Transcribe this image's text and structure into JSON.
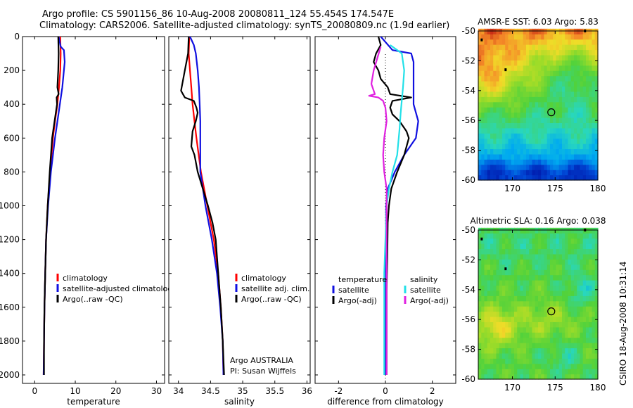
{
  "header": {
    "line1": "Argo profile: CS 5901156_86 10-Aug-2008 20080811_124 55.454S 174.547E",
    "line2": "Climatology: CARS2006. Satellite-adjusted climatology: synTS_20080809.nc (1.9d earlier)"
  },
  "colors": {
    "climatology": "#ff0000",
    "satellite": "#1010e0",
    "argo": "#000000",
    "satellite_salinity": "#22e0e8",
    "argo_salinity": "#e020e0"
  },
  "footer": {
    "credit": "CSIRO 18-Aug-2008 10:31:14"
  },
  "chart_data": [
    {
      "type": "line",
      "name": "temperature",
      "xlabel": "temperature",
      "ylabel": "",
      "xlim": [
        -3,
        32
      ],
      "ylim": [
        2050,
        0
      ],
      "xticks": [
        "0",
        "10",
        "20",
        "30"
      ],
      "xtick_values": [
        0,
        10,
        20,
        30
      ],
      "yticks": [
        "0",
        "200",
        "400",
        "600",
        "800",
        "1000",
        "1200",
        "1400",
        "1600",
        "1800",
        "2000"
      ],
      "ytick_values": [
        0,
        200,
        400,
        600,
        800,
        1000,
        1200,
        1400,
        1600,
        1800,
        2000
      ],
      "legend": [
        "climatology",
        "satellite-adjusted climatology",
        "Argo(..raw -QC)"
      ],
      "series": [
        {
          "name": "climatology",
          "color_key": "climatology",
          "points": [
            [
              6.3,
              0
            ],
            [
              6.4,
              100
            ],
            [
              6.3,
              200
            ],
            [
              6.0,
              300
            ],
            [
              5.6,
              400
            ],
            [
              5.0,
              500
            ],
            [
              4.5,
              600
            ],
            [
              3.8,
              800
            ],
            [
              3.2,
              1000
            ],
            [
              2.8,
              1200
            ],
            [
              2.6,
              1400
            ],
            [
              2.4,
              1600
            ],
            [
              2.3,
              1800
            ],
            [
              2.2,
              2000
            ]
          ]
        },
        {
          "name": "satellite-adjusted climatology",
          "color_key": "satellite",
          "points": [
            [
              5.9,
              0
            ],
            [
              6.4,
              60
            ],
            [
              7.2,
              80
            ],
            [
              7.4,
              150
            ],
            [
              6.8,
              300
            ],
            [
              5.9,
              450
            ],
            [
              5.0,
              600
            ],
            [
              4.0,
              800
            ],
            [
              3.3,
              1000
            ],
            [
              2.8,
              1200
            ],
            [
              2.6,
              1400
            ],
            [
              2.4,
              1600
            ],
            [
              2.3,
              1800
            ],
            [
              2.2,
              2000
            ]
          ]
        },
        {
          "name": "Argo(..raw -QC)",
          "color_key": "argo",
          "points": [
            [
              5.8,
              0
            ],
            [
              5.9,
              100
            ],
            [
              5.8,
              200
            ],
            [
              5.6,
              300
            ],
            [
              5.9,
              340
            ],
            [
              5.4,
              360
            ],
            [
              5.5,
              400
            ],
            [
              4.9,
              500
            ],
            [
              4.3,
              600
            ],
            [
              3.7,
              800
            ],
            [
              3.2,
              1000
            ],
            [
              2.8,
              1200
            ],
            [
              2.6,
              1400
            ],
            [
              2.4,
              1600
            ],
            [
              2.3,
              1800
            ],
            [
              2.3,
              2000
            ]
          ]
        }
      ]
    },
    {
      "type": "line",
      "name": "salinity",
      "xlabel": "salinity",
      "ylabel": "",
      "xlim": [
        33.85,
        36.05
      ],
      "ylim": [
        2050,
        0
      ],
      "xticks": [
        "34",
        "34.5",
        "35",
        "35.5",
        "36"
      ],
      "xtick_values": [
        34,
        34.5,
        35,
        35.5,
        36
      ],
      "legend": [
        "climatology",
        "satellite adj. clim.",
        "Argo(..raw -QC)"
      ],
      "annotations": [
        "Argo AUSTRALIA",
        "PI: Susan Wijffels"
      ],
      "series": [
        {
          "name": "climatology",
          "color_key": "climatology",
          "points": [
            [
              34.17,
              0
            ],
            [
              34.16,
              100
            ],
            [
              34.18,
              200
            ],
            [
              34.2,
              300
            ],
            [
              34.22,
              400
            ],
            [
              34.25,
              500
            ],
            [
              34.28,
              600
            ],
            [
              34.35,
              800
            ],
            [
              34.45,
              1000
            ],
            [
              34.55,
              1200
            ],
            [
              34.62,
              1400
            ],
            [
              34.66,
              1600
            ],
            [
              34.69,
              1800
            ],
            [
              34.7,
              2000
            ]
          ]
        },
        {
          "name": "satellite adj. clim.",
          "color_key": "satellite",
          "points": [
            [
              34.18,
              0
            ],
            [
              34.24,
              50
            ],
            [
              34.27,
              100
            ],
            [
              34.3,
              200
            ],
            [
              34.32,
              300
            ],
            [
              34.33,
              400
            ],
            [
              34.34,
              500
            ],
            [
              34.34,
              600
            ],
            [
              34.34,
              800
            ],
            [
              34.42,
              1000
            ],
            [
              34.52,
              1200
            ],
            [
              34.6,
              1400
            ],
            [
              34.65,
              1600
            ],
            [
              34.69,
              1800
            ],
            [
              34.7,
              2000
            ]
          ]
        },
        {
          "name": "Argo(..raw -QC)",
          "color_key": "argo",
          "points": [
            [
              34.16,
              0
            ],
            [
              34.15,
              100
            ],
            [
              34.1,
              200
            ],
            [
              34.06,
              280
            ],
            [
              34.04,
              320
            ],
            [
              34.1,
              360
            ],
            [
              34.24,
              380
            ],
            [
              34.28,
              420
            ],
            [
              34.3,
              450
            ],
            [
              34.27,
              500
            ],
            [
              34.22,
              560
            ],
            [
              34.2,
              650
            ],
            [
              34.25,
              700
            ],
            [
              34.3,
              800
            ],
            [
              34.38,
              900
            ],
            [
              34.46,
              1000
            ],
            [
              34.53,
              1100
            ],
            [
              34.58,
              1200
            ],
            [
              34.62,
              1400
            ],
            [
              34.66,
              1600
            ],
            [
              34.69,
              1800
            ],
            [
              34.71,
              2000
            ]
          ]
        }
      ]
    },
    {
      "type": "line",
      "name": "difference",
      "xlabel": "difference from climatology",
      "ylabel": "",
      "xlim": [
        -3,
        3
      ],
      "ylim": [
        2050,
        0
      ],
      "xticks": [
        "-2",
        "0",
        "2"
      ],
      "xtick_values": [
        -2,
        0,
        2
      ],
      "legend_headers": [
        "temperature",
        "salinity"
      ],
      "legend": [
        "satellite",
        "Argo(-adj)",
        "satellite",
        "Argo(-adj)"
      ],
      "series": [
        {
          "name": "temperature satellite",
          "color_key": "satellite",
          "points": [
            [
              -0.2,
              0
            ],
            [
              0.3,
              80
            ],
            [
              1.1,
              100
            ],
            [
              1.2,
              150
            ],
            [
              1.2,
              250
            ],
            [
              1.2,
              400
            ],
            [
              1.4,
              500
            ],
            [
              1.3,
              600
            ],
            [
              0.8,
              700
            ],
            [
              0.4,
              800
            ],
            [
              0.1,
              900
            ],
            [
              0.03,
              1000
            ],
            [
              0.02,
              1200
            ],
            [
              0.01,
              2000
            ]
          ]
        },
        {
          "name": "temperature Argo(-adj)",
          "color_key": "argo",
          "points": [
            [
              -0.3,
              0
            ],
            [
              -0.2,
              50
            ],
            [
              -0.4,
              100
            ],
            [
              -0.5,
              150
            ],
            [
              -0.3,
              200
            ],
            [
              -0.2,
              250
            ],
            [
              0.1,
              300
            ],
            [
              0.2,
              340
            ],
            [
              1.1,
              360
            ],
            [
              0.3,
              380
            ],
            [
              0.2,
              420
            ],
            [
              0.3,
              460
            ],
            [
              0.6,
              500
            ],
            [
              0.8,
              540
            ],
            [
              0.9,
              560
            ],
            [
              1.0,
              600
            ],
            [
              0.9,
              650
            ],
            [
              0.8,
              700
            ],
            [
              0.5,
              800
            ],
            [
              0.25,
              900
            ],
            [
              0.15,
              1000
            ],
            [
              0.1,
              1100
            ],
            [
              0.08,
              1300
            ],
            [
              0.05,
              1500
            ],
            [
              0.05,
              1700
            ],
            [
              0.05,
              1900
            ],
            [
              0.05,
              2000
            ]
          ]
        },
        {
          "name": "salinity satellite",
          "color_key": "satellite_salinity",
          "points": [
            [
              0.2,
              50
            ],
            [
              0.5,
              80
            ],
            [
              0.7,
              100
            ],
            [
              0.8,
              200
            ],
            [
              0.75,
              300
            ],
            [
              0.65,
              450
            ],
            [
              0.6,
              550
            ],
            [
              0.5,
              700
            ],
            [
              0.3,
              800
            ],
            [
              0.15,
              900
            ],
            [
              0.05,
              1000
            ],
            [
              0.0,
              1200
            ],
            [
              -0.05,
              1400
            ],
            [
              -0.05,
              1600
            ],
            [
              -0.05,
              2000
            ]
          ]
        },
        {
          "name": "salinity Argo(-adj)",
          "color_key": "argo_salinity",
          "points": [
            [
              -0.2,
              60
            ],
            [
              -0.5,
              200
            ],
            [
              -0.6,
              280
            ],
            [
              -0.45,
              340
            ],
            [
              -0.7,
              350
            ],
            [
              -0.3,
              360
            ],
            [
              -0.1,
              380
            ],
            [
              0.0,
              420
            ],
            [
              0.05,
              500
            ],
            [
              -0.05,
              600
            ],
            [
              -0.1,
              700
            ],
            [
              -0.05,
              800
            ],
            [
              0.05,
              900
            ],
            [
              0.05,
              1000
            ],
            [
              0.05,
              1200
            ],
            [
              0.05,
              1400
            ],
            [
              0.05,
              1600
            ],
            [
              0.05,
              2000
            ]
          ]
        }
      ]
    },
    {
      "type": "heatmap",
      "name": "sst-map",
      "title": "AMSR-E SST: 6.03 Argo: 5.83",
      "xlim": [
        166,
        180
      ],
      "ylim": [
        -60,
        -50
      ],
      "xticks": [
        "170",
        "175",
        "180"
      ],
      "xtick_values": [
        170,
        175,
        180
      ],
      "yticks": [
        "-50",
        "-52",
        "-54",
        "-56",
        "-58",
        "-60"
      ],
      "ytick_values": [
        -50,
        -52,
        -54,
        -56,
        -58,
        -60
      ],
      "argo_position": [
        174.547,
        -55.454
      ]
    },
    {
      "type": "heatmap",
      "name": "sla-map",
      "title": "Altimetric SLA: 0.16 Argo: 0.038",
      "xlim": [
        166,
        180
      ],
      "ylim": [
        -60,
        -50
      ],
      "xticks": [
        "170",
        "175",
        "180"
      ],
      "xtick_values": [
        170,
        175,
        180
      ],
      "yticks": [
        "-50",
        "-52",
        "-54",
        "-56",
        "-58",
        "-60"
      ],
      "ytick_values": [
        -50,
        -52,
        -54,
        -56,
        -58,
        -60
      ],
      "argo_position": [
        174.547,
        -55.454
      ]
    }
  ]
}
